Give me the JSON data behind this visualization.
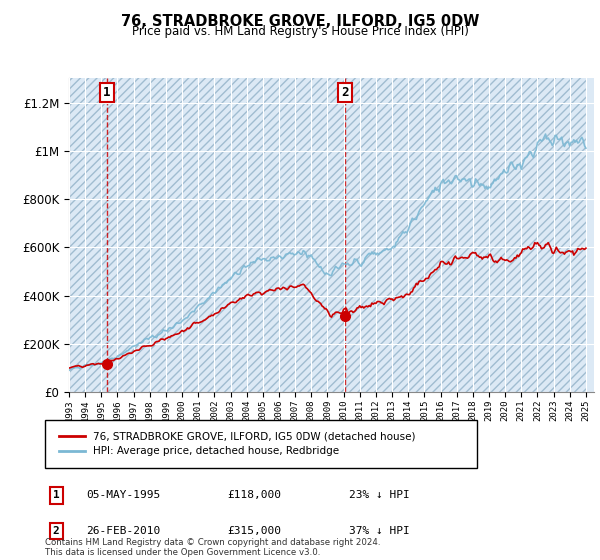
{
  "title": "76, STRADBROKE GROVE, ILFORD, IG5 0DW",
  "subtitle": "Price paid vs. HM Land Registry's House Price Index (HPI)",
  "legend_line1": "76, STRADBROKE GROVE, ILFORD, IG5 0DW (detached house)",
  "legend_line2": "HPI: Average price, detached house, Redbridge",
  "annotation1_date": "05-MAY-1995",
  "annotation1_price": 118000,
  "annotation1_pct": "23% ↓ HPI",
  "annotation2_date": "26-FEB-2010",
  "annotation2_price": 315000,
  "annotation2_pct": "37% ↓ HPI",
  "footer": "Contains HM Land Registry data © Crown copyright and database right 2024.\nThis data is licensed under the Open Government Licence v3.0.",
  "hpi_color": "#7bb8d4",
  "price_color": "#cc0000",
  "dashed_color": "#cc0000",
  "ylim_min": 0,
  "ylim_max": 1300000,
  "bg_light": "#dce9f5",
  "bg_hatch": "#dce9f5"
}
